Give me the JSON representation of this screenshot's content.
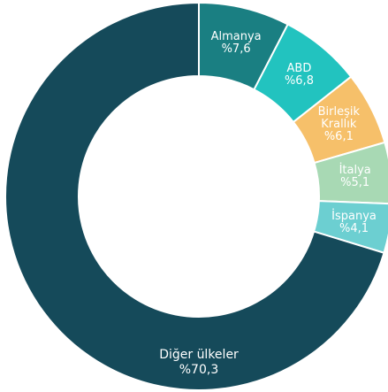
{
  "chart_data": {
    "type": "donut",
    "categories": [
      "Almanya",
      "ABD",
      "Birleşik Krallık",
      "İtalya",
      "İspanya",
      "Diğer ülkeler"
    ],
    "values": [
      7.6,
      6.8,
      6.1,
      5.1,
      4.1,
      70.3
    ],
    "value_labels": [
      "%7,6",
      "%6,8",
      "%6,1",
      "%5,1",
      "%4,1",
      "%70,3"
    ],
    "colors": [
      "#1a7f82",
      "#22c3bf",
      "#f6c06a",
      "#a8d9b4",
      "#6ccfd1",
      "#154a5a"
    ]
  }
}
